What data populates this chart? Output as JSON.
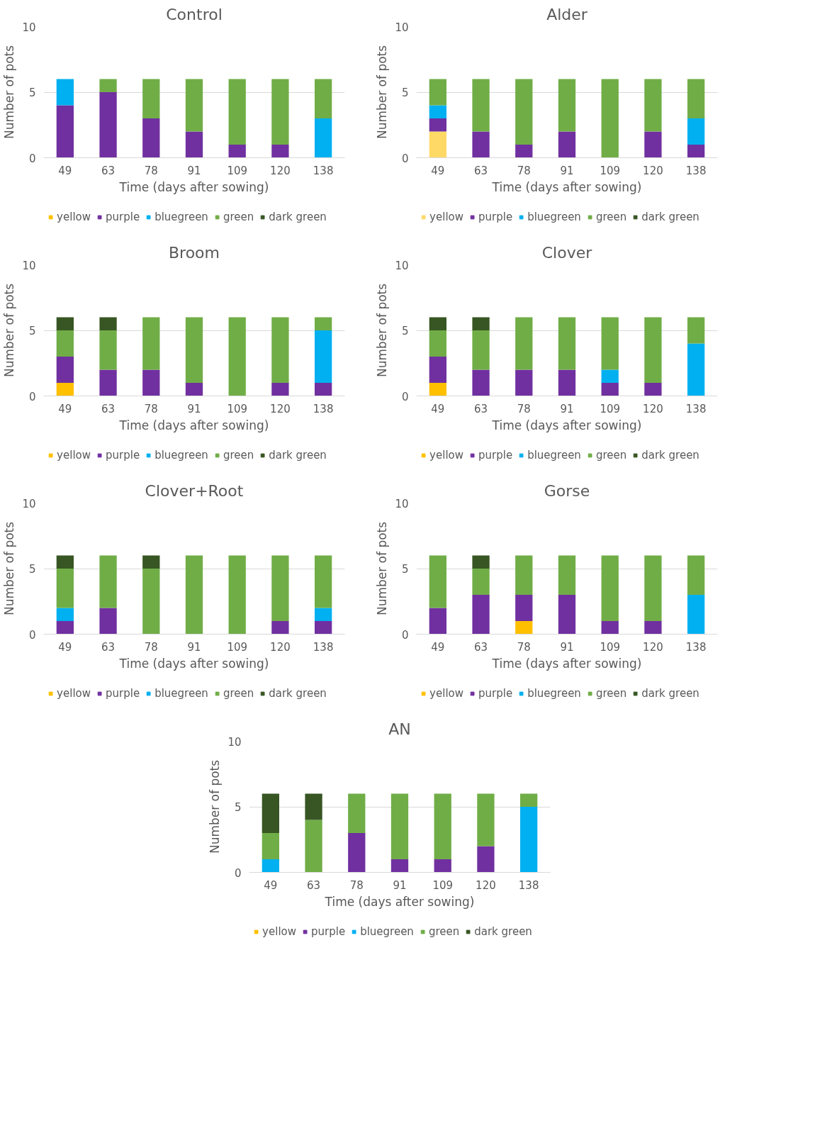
{
  "chart_data": [
    {
      "type": "bar",
      "stacked": true,
      "title": "Control",
      "xlabel": "Time (days after sowing)",
      "ylabel": "Number of pots",
      "categories": [
        "49",
        "63",
        "78",
        "91",
        "109",
        "120",
        "138"
      ],
      "ylim": [
        0,
        10
      ],
      "yticks": [
        0,
        5,
        10
      ],
      "grid": "y",
      "legend": "bottom",
      "series": [
        {
          "name": "yellow",
          "color": "#ffc000",
          "values": [
            0,
            0,
            0,
            0,
            0,
            0,
            0
          ]
        },
        {
          "name": "purple",
          "color": "#7030a0",
          "values": [
            4,
            5,
            3,
            2,
            1,
            1,
            0
          ]
        },
        {
          "name": "bluegreen",
          "color": "#00b0f0",
          "values": [
            2,
            0,
            0,
            0,
            0,
            0,
            3
          ]
        },
        {
          "name": "green",
          "color": "#70ad47",
          "values": [
            0,
            1,
            3,
            4,
            5,
            5,
            3
          ]
        },
        {
          "name": "dark green",
          "color": "#375623",
          "values": [
            0,
            0,
            0,
            0,
            0,
            0,
            0
          ]
        }
      ]
    },
    {
      "type": "bar",
      "stacked": true,
      "title": "Alder",
      "xlabel": "Time (days after sowing)",
      "ylabel": "Number of pots",
      "categories": [
        "49",
        "63",
        "78",
        "91",
        "109",
        "120",
        "138"
      ],
      "ylim": [
        0,
        10
      ],
      "yticks": [
        0,
        5,
        10
      ],
      "grid": "y",
      "legend": "bottom",
      "series": [
        {
          "name": "yellow",
          "color": "#ffd966",
          "values": [
            2,
            0,
            0,
            0,
            0,
            0,
            0
          ]
        },
        {
          "name": "purple",
          "color": "#7030a0",
          "values": [
            1,
            2,
            1,
            2,
            0,
            2,
            1
          ]
        },
        {
          "name": "bluegreen",
          "color": "#00b0f0",
          "values": [
            1,
            0,
            0,
            0,
            0,
            0,
            2
          ]
        },
        {
          "name": "green",
          "color": "#70ad47",
          "values": [
            2,
            4,
            5,
            4,
            6,
            4,
            3
          ]
        },
        {
          "name": "dark green",
          "color": "#375623",
          "values": [
            0,
            0,
            0,
            0,
            0,
            0,
            0
          ]
        }
      ]
    },
    {
      "type": "bar",
      "stacked": true,
      "title": "Broom",
      "xlabel": "Time (days after sowing)",
      "ylabel": "Number of pots",
      "categories": [
        "49",
        "63",
        "78",
        "91",
        "109",
        "120",
        "138"
      ],
      "ylim": [
        0,
        10
      ],
      "yticks": [
        0,
        5,
        10
      ],
      "grid": "y",
      "legend": "bottom",
      "series": [
        {
          "name": "yellow",
          "color": "#ffc000",
          "values": [
            1,
            0,
            0,
            0,
            0,
            0,
            0
          ]
        },
        {
          "name": "purple",
          "color": "#7030a0",
          "values": [
            2,
            2,
            2,
            1,
            0,
            1,
            1
          ]
        },
        {
          "name": "bluegreen",
          "color": "#00b0f0",
          "values": [
            0,
            0,
            0,
            0,
            0,
            0,
            4
          ]
        },
        {
          "name": "green",
          "color": "#70ad47",
          "values": [
            2,
            3,
            4,
            5,
            6,
            5,
            1
          ]
        },
        {
          "name": "dark green",
          "color": "#375623",
          "values": [
            1,
            1,
            0,
            0,
            0,
            0,
            0
          ]
        }
      ]
    },
    {
      "type": "bar",
      "stacked": true,
      "title": "Clover",
      "xlabel": "Time (days after sowing)",
      "ylabel": "Number of pots",
      "categories": [
        "49",
        "63",
        "78",
        "91",
        "109",
        "120",
        "138"
      ],
      "ylim": [
        0,
        10
      ],
      "yticks": [
        0,
        5,
        10
      ],
      "grid": "y",
      "legend": "bottom",
      "series": [
        {
          "name": "yellow",
          "color": "#ffc000",
          "values": [
            1,
            0,
            0,
            0,
            0,
            0,
            0
          ]
        },
        {
          "name": "purple",
          "color": "#7030a0",
          "values": [
            2,
            2,
            2,
            2,
            1,
            1,
            0
          ]
        },
        {
          "name": "bluegreen",
          "color": "#00b0f0",
          "values": [
            0,
            0,
            0,
            0,
            1,
            0,
            4
          ]
        },
        {
          "name": "green",
          "color": "#70ad47",
          "values": [
            2,
            3,
            4,
            4,
            4,
            5,
            2
          ]
        },
        {
          "name": "dark green",
          "color": "#375623",
          "values": [
            1,
            1,
            0,
            0,
            0,
            0,
            0
          ]
        }
      ]
    },
    {
      "type": "bar",
      "stacked": true,
      "title": "Clover+Root",
      "xlabel": "Time (days after sowing)",
      "ylabel": "Number of pots",
      "categories": [
        "49",
        "63",
        "78",
        "91",
        "109",
        "120",
        "138"
      ],
      "ylim": [
        0,
        10
      ],
      "yticks": [
        0,
        5,
        10
      ],
      "grid": "y",
      "legend": "bottom",
      "series": [
        {
          "name": "yellow",
          "color": "#ffc000",
          "values": [
            0,
            0,
            0,
            0,
            0,
            0,
            0
          ]
        },
        {
          "name": "purple",
          "color": "#7030a0",
          "values": [
            1,
            2,
            0,
            0,
            0,
            1,
            1
          ]
        },
        {
          "name": "bluegreen",
          "color": "#00b0f0",
          "values": [
            1,
            0,
            0,
            0,
            0,
            0,
            1
          ]
        },
        {
          "name": "green",
          "color": "#70ad47",
          "values": [
            3,
            4,
            5,
            6,
            6,
            5,
            4
          ]
        },
        {
          "name": "dark green",
          "color": "#375623",
          "values": [
            1,
            0,
            1,
            0,
            0,
            0,
            0
          ]
        }
      ]
    },
    {
      "type": "bar",
      "stacked": true,
      "title": "Gorse",
      "xlabel": "Time (days after sowing)",
      "ylabel": "Number of pots",
      "categories": [
        "49",
        "63",
        "78",
        "91",
        "109",
        "120",
        "138"
      ],
      "ylim": [
        0,
        10
      ],
      "yticks": [
        0,
        5,
        10
      ],
      "grid": "y",
      "legend": "bottom",
      "series": [
        {
          "name": "yellow",
          "color": "#ffc000",
          "values": [
            0,
            0,
            1,
            0,
            0,
            0,
            0
          ]
        },
        {
          "name": "purple",
          "color": "#7030a0",
          "values": [
            2,
            3,
            2,
            3,
            1,
            1,
            0
          ]
        },
        {
          "name": "bluegreen",
          "color": "#00b0f0",
          "values": [
            0,
            0,
            0,
            0,
            0,
            0,
            3
          ]
        },
        {
          "name": "green",
          "color": "#70ad47",
          "values": [
            4,
            2,
            3,
            3,
            5,
            5,
            3
          ]
        },
        {
          "name": "dark green",
          "color": "#375623",
          "values": [
            0,
            1,
            0,
            0,
            0,
            0,
            0
          ]
        }
      ]
    },
    {
      "type": "bar",
      "stacked": true,
      "title": "AN",
      "xlabel": "Time (days after sowing)",
      "ylabel": "Number of pots",
      "categories": [
        "49",
        "63",
        "78",
        "91",
        "109",
        "120",
        "138"
      ],
      "ylim": [
        0,
        10
      ],
      "yticks": [
        0,
        5,
        10
      ],
      "grid": "y",
      "legend": "bottom",
      "series": [
        {
          "name": "yellow",
          "color": "#ffc000",
          "values": [
            0,
            0,
            0,
            0,
            0,
            0,
            0
          ]
        },
        {
          "name": "purple",
          "color": "#7030a0",
          "values": [
            0,
            0,
            3,
            1,
            1,
            2,
            0
          ]
        },
        {
          "name": "bluegreen",
          "color": "#00b0f0",
          "values": [
            1,
            0,
            0,
            0,
            0,
            0,
            5
          ]
        },
        {
          "name": "green",
          "color": "#70ad47",
          "values": [
            2,
            4,
            3,
            5,
            5,
            4,
            1
          ]
        },
        {
          "name": "dark green",
          "color": "#375623",
          "values": [
            3,
            2,
            0,
            0,
            0,
            0,
            0
          ]
        }
      ]
    }
  ]
}
